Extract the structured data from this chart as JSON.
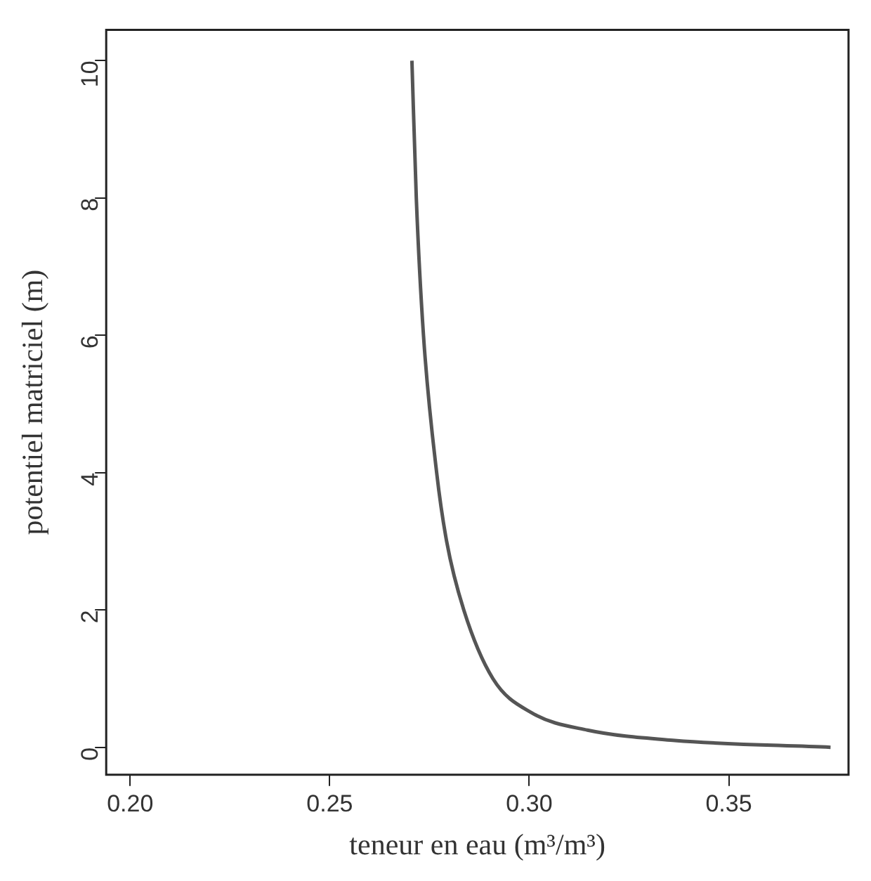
{
  "chart_data": {
    "type": "line",
    "xlabel": "teneur en eau (m³/m³)",
    "ylabel": "potentiel matriciel (m)",
    "series": [
      {
        "color": "#555555",
        "x": [
          0.2706,
          0.2717,
          0.2735,
          0.2768,
          0.2793,
          0.2836,
          0.2909,
          0.3007,
          0.3146,
          0.3365,
          0.3755
        ],
        "values": [
          10,
          8,
          6,
          4,
          3,
          2,
          1,
          0.5,
          0.25,
          0.1,
          0
        ]
      }
    ],
    "xlim": [
      0.194,
      0.38
    ],
    "ylim": [
      -0.4,
      10.45
    ],
    "xticks": [
      {
        "value": 0.2,
        "label": "0.20"
      },
      {
        "value": 0.25,
        "label": "0.25"
      },
      {
        "value": 0.3,
        "label": "0.30"
      },
      {
        "value": 0.35,
        "label": "0.35"
      }
    ],
    "yticks": [
      0,
      2,
      4,
      6,
      8,
      10
    ],
    "grid": false,
    "legend": false,
    "marker": "none",
    "line_style": "solid"
  }
}
